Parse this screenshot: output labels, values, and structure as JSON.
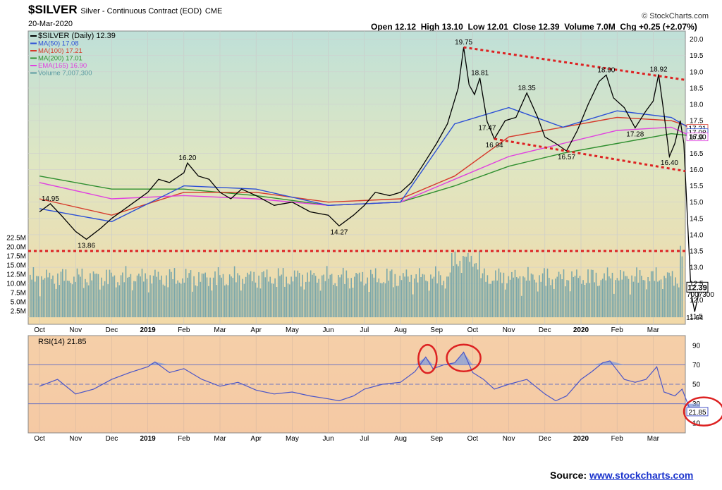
{
  "header": {
    "symbol": "$SILVER",
    "name": "Silver - Continuous Contract (EOD)",
    "exchange": "CME",
    "date": "20-Mar-2020",
    "open_label": "Open",
    "open": "12.12",
    "high_label": "High",
    "high": "13.10",
    "low_label": "Low",
    "low": "12.01",
    "close_label": "Close",
    "close": "12.39",
    "volume_label": "Volume",
    "volume": "7.0M",
    "chg_label": "Chg",
    "chg": "+0.25 (+2.07%)",
    "copyright": "© StockCharts.com"
  },
  "legend": [
    {
      "text": "$SILVER (Daily) 12.39",
      "color": "#000000"
    },
    {
      "text": "MA(50) 17.08",
      "color": "#2b4fd6"
    },
    {
      "text": "MA(100) 17.21",
      "color": "#d63a2b"
    },
    {
      "text": "MA(200) 17.01",
      "color": "#2f8f2f"
    },
    {
      "text": "EMA(165) 16.90",
      "color": "#e040e0"
    },
    {
      "text": "Volume 7,007,300",
      "color": "#5a9aa0"
    }
  ],
  "rsi_legend": "RSI(14) 21.85",
  "source": {
    "label": "Source:",
    "link": "www.stockcharts.com"
  },
  "colors": {
    "price": "#000000",
    "ma50": "#2b4fd6",
    "ma100": "#d63a2b",
    "ma200": "#2f8f2f",
    "ema165": "#e040e0",
    "volume": "#7aa7aa",
    "rsi": "#4a55c8",
    "trend": "#dd2222"
  },
  "chart_data": {
    "type": "line",
    "x_ticks": [
      "Oct",
      "Nov",
      "Dec",
      "2019",
      "Feb",
      "Mar",
      "Apr",
      "May",
      "Jun",
      "Jul",
      "Aug",
      "Sep",
      "Oct",
      "Nov",
      "Dec",
      "2020",
      "Feb",
      "Mar"
    ],
    "price_ticks": [
      "20.0",
      "19.5",
      "19.0",
      "18.5",
      "18.0",
      "17.5",
      "17.0",
      "16.5",
      "16.0",
      "15.5",
      "15.0",
      "14.5",
      "14.0",
      "13.5",
      "13.0",
      "12.5",
      "12.0",
      "11.5"
    ],
    "price_range": [
      11.25,
      20.25
    ],
    "volume_ticks": [
      "22.5M",
      "20.0M",
      "17.5M",
      "15.0M",
      "12.5M",
      "10.0M",
      "7.5M",
      "5.0M",
      "2.5M"
    ],
    "rsi_ticks": [
      "90",
      "70",
      "50",
      "30",
      "10"
    ],
    "price_series": [
      [
        0,
        14.7
      ],
      [
        0.3,
        14.95
      ],
      [
        0.6,
        14.6
      ],
      [
        1.0,
        14.1
      ],
      [
        1.3,
        13.86
      ],
      [
        1.7,
        14.2
      ],
      [
        2.0,
        14.5
      ],
      [
        2.5,
        14.9
      ],
      [
        3.0,
        15.3
      ],
      [
        3.3,
        15.7
      ],
      [
        3.6,
        15.6
      ],
      [
        4.0,
        15.9
      ],
      [
        4.1,
        16.2
      ],
      [
        4.4,
        15.8
      ],
      [
        4.7,
        15.7
      ],
      [
        5.0,
        15.3
      ],
      [
        5.3,
        15.1
      ],
      [
        5.6,
        15.4
      ],
      [
        6.0,
        15.2
      ],
      [
        6.5,
        14.9
      ],
      [
        7.0,
        15.0
      ],
      [
        7.5,
        14.7
      ],
      [
        8.0,
        14.6
      ],
      [
        8.3,
        14.27
      ],
      [
        8.7,
        14.6
      ],
      [
        9.0,
        14.9
      ],
      [
        9.3,
        15.3
      ],
      [
        9.7,
        15.2
      ],
      [
        10.0,
        15.3
      ],
      [
        10.3,
        15.6
      ],
      [
        10.6,
        16.1
      ],
      [
        11.0,
        16.8
      ],
      [
        11.3,
        17.4
      ],
      [
        11.6,
        18.5
      ],
      [
        11.75,
        19.75
      ],
      [
        11.9,
        18.6
      ],
      [
        12.05,
        18.3
      ],
      [
        12.2,
        18.81
      ],
      [
        12.4,
        17.47
      ],
      [
        12.6,
        16.94
      ],
      [
        12.9,
        17.5
      ],
      [
        13.2,
        17.6
      ],
      [
        13.5,
        18.35
      ],
      [
        13.8,
        17.6
      ],
      [
        14.0,
        17.0
      ],
      [
        14.3,
        16.8
      ],
      [
        14.6,
        16.57
      ],
      [
        14.9,
        17.2
      ],
      [
        15.2,
        18.0
      ],
      [
        15.5,
        18.7
      ],
      [
        15.7,
        18.9
      ],
      [
        15.9,
        18.2
      ],
      [
        16.2,
        17.9
      ],
      [
        16.5,
        17.28
      ],
      [
        16.8,
        17.8
      ],
      [
        17.0,
        18.1
      ],
      [
        17.15,
        18.92
      ],
      [
        17.3,
        17.7
      ],
      [
        17.45,
        16.4
      ],
      [
        17.6,
        16.8
      ],
      [
        17.75,
        17.5
      ],
      [
        17.85,
        16.8
      ],
      [
        17.95,
        14.5
      ],
      [
        18.05,
        12.2
      ],
      [
        18.15,
        11.64
      ],
      [
        18.3,
        12.39
      ]
    ],
    "ma50": [
      [
        0,
        14.8
      ],
      [
        2,
        14.4
      ],
      [
        4,
        15.5
      ],
      [
        6,
        15.4
      ],
      [
        8,
        14.9
      ],
      [
        10,
        15.0
      ],
      [
        11.5,
        17.4
      ],
      [
        13,
        17.9
      ],
      [
        14.5,
        17.3
      ],
      [
        16,
        17.8
      ],
      [
        17.5,
        17.6
      ],
      [
        18.3,
        17.08
      ]
    ],
    "ma100": [
      [
        0,
        15.1
      ],
      [
        2,
        14.6
      ],
      [
        4,
        15.3
      ],
      [
        6,
        15.3
      ],
      [
        8,
        15.0
      ],
      [
        10,
        15.1
      ],
      [
        11.5,
        15.8
      ],
      [
        13,
        17.0
      ],
      [
        14.5,
        17.3
      ],
      [
        16,
        17.6
      ],
      [
        17.5,
        17.5
      ],
      [
        18.3,
        17.21
      ]
    ],
    "ma200": [
      [
        0,
        15.8
      ],
      [
        2,
        15.4
      ],
      [
        4,
        15.4
      ],
      [
        6,
        15.2
      ],
      [
        8,
        14.9
      ],
      [
        10,
        15.0
      ],
      [
        11.5,
        15.5
      ],
      [
        13,
        16.1
      ],
      [
        14.5,
        16.5
      ],
      [
        16,
        16.8
      ],
      [
        17.5,
        17.1
      ],
      [
        18.3,
        17.01
      ]
    ],
    "ema165": [
      [
        0,
        15.6
      ],
      [
        2,
        15.1
      ],
      [
        4,
        15.2
      ],
      [
        6,
        15.1
      ],
      [
        8,
        14.9
      ],
      [
        10,
        15.0
      ],
      [
        11.5,
        15.7
      ],
      [
        13,
        16.4
      ],
      [
        14.5,
        16.8
      ],
      [
        16,
        17.2
      ],
      [
        17.5,
        17.3
      ],
      [
        18.3,
        16.9
      ]
    ],
    "price_annotations": [
      {
        "text": "14.95",
        "x": 0.3,
        "y": 14.95
      },
      {
        "text": "13.86",
        "x": 1.3,
        "y": 13.86
      },
      {
        "text": "16.20",
        "x": 4.1,
        "y": 16.2
      },
      {
        "text": "14.27",
        "x": 8.3,
        "y": 14.27
      },
      {
        "text": "19.75",
        "x": 11.75,
        "y": 19.75
      },
      {
        "text": "18.81",
        "x": 12.2,
        "y": 18.81
      },
      {
        "text": "17.47",
        "x": 12.4,
        "y": 17.47
      },
      {
        "text": "16.94",
        "x": 12.6,
        "y": 16.94
      },
      {
        "text": "18.35",
        "x": 13.5,
        "y": 18.35
      },
      {
        "text": "16.57",
        "x": 14.6,
        "y": 16.57
      },
      {
        "text": "18.90",
        "x": 15.7,
        "y": 18.9
      },
      {
        "text": "17.28",
        "x": 16.5,
        "y": 17.28
      },
      {
        "text": "18.92",
        "x": 17.15,
        "y": 18.92
      },
      {
        "text": "16.40",
        "x": 17.45,
        "y": 16.4
      },
      {
        "text": "11.64",
        "x": 18.15,
        "y": 11.64
      }
    ],
    "trendlines": [
      {
        "x1": 11.75,
        "y1": 19.75,
        "x2": 18.95,
        "y2": 18.75
      },
      {
        "x1": 12.6,
        "y1": 16.94,
        "x2": 18.95,
        "y2": 15.95
      }
    ],
    "support_line": 13.5,
    "last_price_label": "12.39",
    "ma_labels": [
      "17.21",
      "17.08",
      "16.90"
    ],
    "volume_label": "7007300",
    "rsi_series": [
      [
        0,
        48
      ],
      [
        0.5,
        55
      ],
      [
        1.0,
        40
      ],
      [
        1.5,
        45
      ],
      [
        2.0,
        55
      ],
      [
        2.5,
        62
      ],
      [
        3.0,
        68
      ],
      [
        3.2,
        73
      ],
      [
        3.6,
        62
      ],
      [
        4.0,
        66
      ],
      [
        4.5,
        55
      ],
      [
        5.0,
        48
      ],
      [
        5.5,
        52
      ],
      [
        6.0,
        44
      ],
      [
        6.5,
        40
      ],
      [
        7.0,
        42
      ],
      [
        7.5,
        38
      ],
      [
        8.0,
        35
      ],
      [
        8.3,
        33
      ],
      [
        8.7,
        38
      ],
      [
        9.0,
        45
      ],
      [
        9.5,
        50
      ],
      [
        10.0,
        52
      ],
      [
        10.4,
        63
      ],
      [
        10.7,
        78
      ],
      [
        10.9,
        66
      ],
      [
        11.2,
        70
      ],
      [
        11.5,
        72
      ],
      [
        11.75,
        83
      ],
      [
        12.0,
        62
      ],
      [
        12.3,
        55
      ],
      [
        12.6,
        45
      ],
      [
        13.0,
        50
      ],
      [
        13.5,
        55
      ],
      [
        14.0,
        40
      ],
      [
        14.3,
        33
      ],
      [
        14.6,
        38
      ],
      [
        15.0,
        55
      ],
      [
        15.3,
        63
      ],
      [
        15.6,
        72
      ],
      [
        15.8,
        74
      ],
      [
        16.2,
        55
      ],
      [
        16.5,
        52
      ],
      [
        16.8,
        55
      ],
      [
        17.1,
        68
      ],
      [
        17.3,
        42
      ],
      [
        17.6,
        38
      ],
      [
        17.8,
        45
      ],
      [
        18.0,
        26
      ],
      [
        18.15,
        18
      ],
      [
        18.3,
        21.85
      ]
    ],
    "rsi_range": [
      0,
      100
    ],
    "rsi_levels": [
      70,
      50,
      30
    ],
    "rsi_last_label": "21.85"
  }
}
